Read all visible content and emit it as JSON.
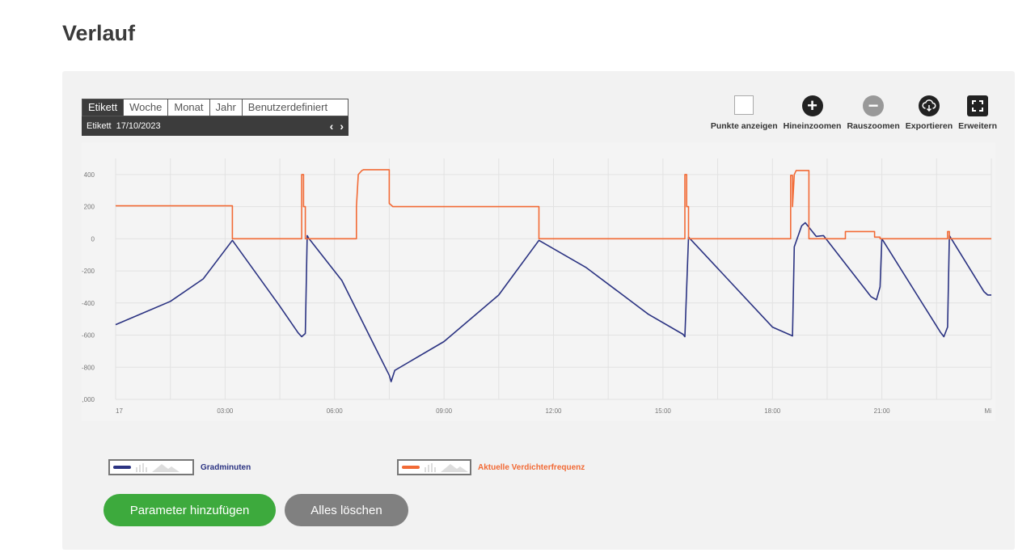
{
  "page": {
    "title": "Verlauf"
  },
  "period": {
    "tabs": [
      "Etikett",
      "Woche",
      "Monat",
      "Jahr",
      "Benutzerdefiniert"
    ],
    "active_tab": 0,
    "date_label": "Etikett",
    "date_value": "17/10/2023",
    "prev_icon": "chevron-left-icon",
    "next_icon": "chevron-right-icon"
  },
  "toolbar": {
    "show_points": "Punkte anzeigen",
    "zoom_in": "Hineinzoomen",
    "zoom_out": "Rauszoomen",
    "export": "Exportieren",
    "expand": "Erweitern"
  },
  "legend": {
    "series1": "Gradminuten",
    "series2": "Aktuelle Verdichterfrequenz"
  },
  "buttons": {
    "add_parameter": "Parameter hinzufügen",
    "clear_all": "Alles löschen"
  },
  "colors": {
    "series1": "#2b3382",
    "series2": "#f26a35",
    "add_button": "#3daa3d",
    "clear_button": "#808080"
  },
  "chart_data": {
    "type": "line",
    "x_unit": "hours",
    "xlim": [
      0,
      24
    ],
    "ylim": [
      -1000,
      500
    ],
    "yticks": [
      400,
      200,
      0,
      -200,
      -400,
      -600,
      -800,
      -1000
    ],
    "ytick_labels": [
      "400",
      "200",
      "0",
      "-200",
      "-400",
      "-600",
      "-800",
      "-1,000"
    ],
    "xticks": [
      0,
      3,
      6,
      9,
      12,
      15,
      18,
      21,
      24
    ],
    "xtick_labels": [
      "17",
      "03:00",
      "06:00",
      "09:00",
      "12:00",
      "15:00",
      "18:00",
      "21:00",
      "Mi"
    ],
    "grid": true,
    "series": [
      {
        "name": "Gradminuten",
        "color": "#2b3382",
        "points": [
          [
            0,
            -535
          ],
          [
            1.5,
            -390
          ],
          [
            2.4,
            -250
          ],
          [
            3.2,
            -10
          ],
          [
            4.5,
            -420
          ],
          [
            5.0,
            -585
          ],
          [
            5.1,
            -610
          ],
          [
            5.2,
            -590
          ],
          [
            5.25,
            20
          ],
          [
            5.3,
            0
          ],
          [
            6.2,
            -260
          ],
          [
            7.1,
            -670
          ],
          [
            7.5,
            -850
          ],
          [
            7.55,
            -890
          ],
          [
            7.65,
            -820
          ],
          [
            9.0,
            -640
          ],
          [
            10.5,
            -350
          ],
          [
            11.6,
            -10
          ],
          [
            12.9,
            -180
          ],
          [
            14.6,
            -470
          ],
          [
            15.55,
            -595
          ],
          [
            15.6,
            -610
          ],
          [
            15.7,
            10
          ],
          [
            18.0,
            -550
          ],
          [
            18.5,
            -600
          ],
          [
            18.55,
            -605
          ],
          [
            18.6,
            -50
          ],
          [
            18.8,
            80
          ],
          [
            18.9,
            100
          ],
          [
            19.2,
            15
          ],
          [
            19.4,
            20
          ],
          [
            20.7,
            -360
          ],
          [
            20.85,
            -380
          ],
          [
            20.95,
            -300
          ],
          [
            21.0,
            0
          ],
          [
            22.6,
            -580
          ],
          [
            22.7,
            -610
          ],
          [
            22.8,
            -550
          ],
          [
            22.85,
            20
          ],
          [
            23.8,
            -330
          ],
          [
            23.9,
            -350
          ],
          [
            24.0,
            -350
          ]
        ]
      },
      {
        "name": "Aktuelle Verdichterfrequenz",
        "color": "#f26a35",
        "points": [
          [
            0,
            205
          ],
          [
            3.2,
            205
          ],
          [
            3.2,
            0
          ],
          [
            5.1,
            0
          ],
          [
            5.1,
            400
          ],
          [
            5.15,
            400
          ],
          [
            5.15,
            200
          ],
          [
            5.2,
            200
          ],
          [
            5.2,
            0
          ],
          [
            6.6,
            0
          ],
          [
            6.6,
            200
          ],
          [
            6.65,
            400
          ],
          [
            6.75,
            425
          ],
          [
            6.8,
            430
          ],
          [
            7.5,
            430
          ],
          [
            7.5,
            220
          ],
          [
            7.6,
            200
          ],
          [
            11.6,
            200
          ],
          [
            11.6,
            0
          ],
          [
            15.6,
            0
          ],
          [
            15.6,
            400
          ],
          [
            15.65,
            400
          ],
          [
            15.65,
            200
          ],
          [
            15.7,
            200
          ],
          [
            15.7,
            0
          ],
          [
            18.5,
            0
          ],
          [
            18.5,
            395
          ],
          [
            18.55,
            395
          ],
          [
            18.55,
            200
          ],
          [
            18.6,
            400
          ],
          [
            18.65,
            425
          ],
          [
            19.0,
            425
          ],
          [
            19.0,
            0
          ],
          [
            20.0,
            0
          ],
          [
            20.0,
            45
          ],
          [
            20.8,
            45
          ],
          [
            20.8,
            10
          ],
          [
            20.95,
            10
          ],
          [
            20.95,
            0
          ],
          [
            22.8,
            0
          ],
          [
            22.8,
            45
          ],
          [
            22.85,
            45
          ],
          [
            22.85,
            0
          ],
          [
            24.0,
            0
          ]
        ]
      }
    ]
  }
}
